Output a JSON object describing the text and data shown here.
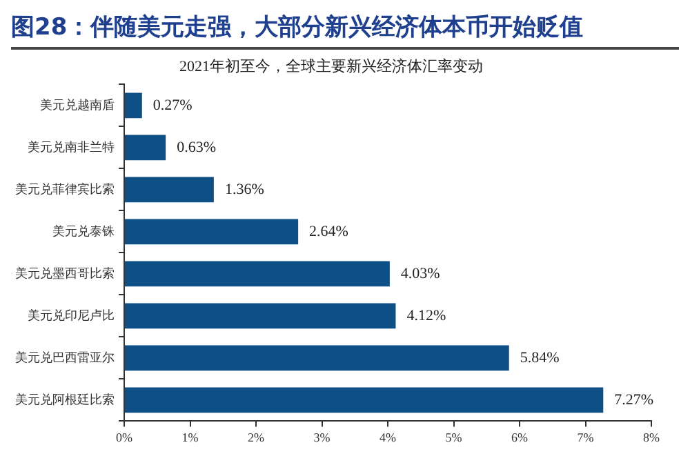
{
  "chart_data": {
    "type": "bar",
    "orientation": "horizontal",
    "title": "图28：伴随美元走强，大部分新兴经济体本币开始贬值",
    "subtitle": "2021年初至今，全球主要新兴经济体汇率变动",
    "categories": [
      "美元兑越南盾",
      "美元兑南非兰特",
      "美元兑菲律宾比索",
      "美元兑泰铢",
      "美元兑墨西哥比索",
      "美元兑印尼卢比",
      "美元兑巴西雷亚尔",
      "美元兑阿根廷比索"
    ],
    "values": [
      0.27,
      0.63,
      1.36,
      2.64,
      4.03,
      4.12,
      5.84,
      7.27
    ],
    "value_labels": [
      "0.27%",
      "0.63%",
      "1.36%",
      "2.64%",
      "4.03%",
      "4.12%",
      "5.84%",
      "7.27%"
    ],
    "color": "#0e4f86",
    "xlim": [
      0,
      8
    ],
    "xticks": [
      {
        "value": 0,
        "label": "0%"
      },
      {
        "value": 1,
        "label": "1%"
      },
      {
        "value": 2,
        "label": "2%"
      },
      {
        "value": 3,
        "label": "3%"
      },
      {
        "value": 4,
        "label": "4%"
      },
      {
        "value": 5,
        "label": "5%"
      },
      {
        "value": 6,
        "label": "6%"
      },
      {
        "value": 7,
        "label": "7%"
      },
      {
        "value": 8,
        "label": "8%"
      }
    ],
    "grid": false,
    "legend": false
  }
}
